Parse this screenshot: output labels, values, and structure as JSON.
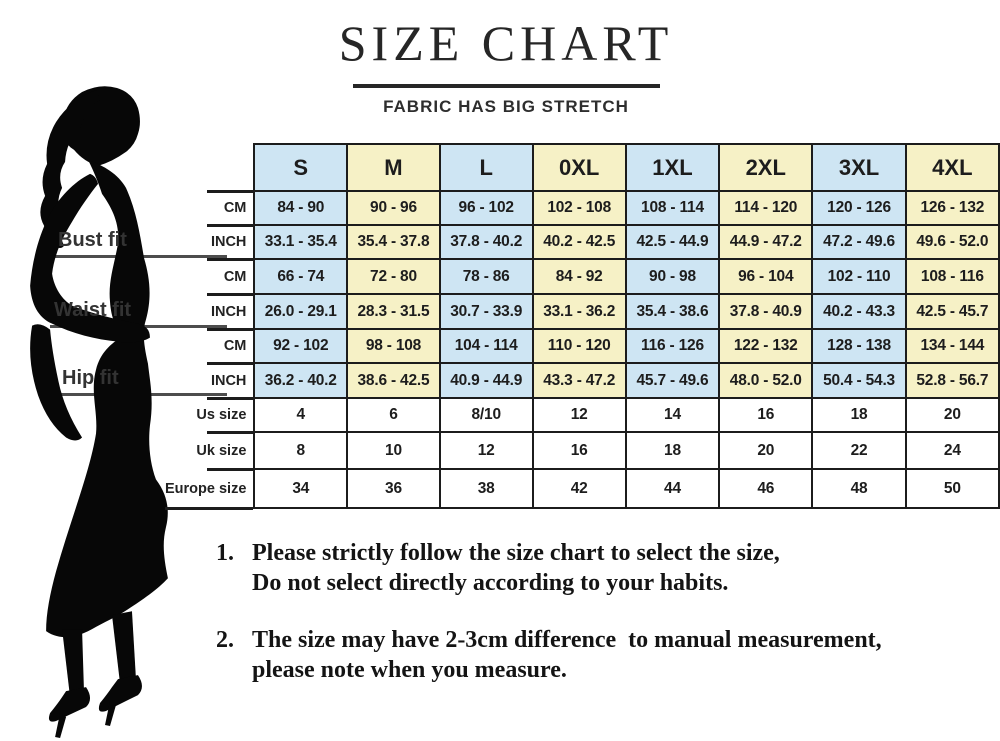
{
  "header": {
    "title": "SIZE CHART",
    "subtitle": "FABRIC HAS BIG STRETCH"
  },
  "figure": {
    "description": "black silhouette of woman in long fitted dress and high heels"
  },
  "measure_labels": [
    {
      "label": "Bust fit"
    },
    {
      "label": "Waist fit"
    },
    {
      "label": "Hip fit"
    }
  ],
  "table": {
    "sizes": [
      "S",
      "M",
      "L",
      "0XL",
      "1XL",
      "2XL",
      "3XL",
      "4XL"
    ],
    "rows": [
      {
        "label": "CM",
        "group": "bust",
        "shaded": true,
        "values": [
          "84 - 90",
          "90 - 96",
          "96 - 102",
          "102 - 108",
          "108 - 114",
          "114 - 120",
          "120 - 126",
          "126 - 132"
        ]
      },
      {
        "label": "INCH",
        "group": "bust",
        "shaded": true,
        "values": [
          "33.1 - 35.4",
          "35.4 - 37.8",
          "37.8 - 40.2",
          "40.2 - 42.5",
          "42.5 - 44.9",
          "44.9 - 47.2",
          "47.2 - 49.6",
          "49.6 - 52.0"
        ]
      },
      {
        "label": "CM",
        "group": "waist",
        "shaded": true,
        "values": [
          "66 - 74",
          "72 - 80",
          "78 - 86",
          "84 - 92",
          "90 - 98",
          "96 - 104",
          "102 - 110",
          "108 - 116"
        ]
      },
      {
        "label": "INCH",
        "group": "waist",
        "shaded": true,
        "values": [
          "26.0 - 29.1",
          "28.3 - 31.5",
          "30.7 - 33.9",
          "33.1 - 36.2",
          "35.4 - 38.6",
          "37.8 - 40.9",
          "40.2 - 43.3",
          "42.5 - 45.7"
        ]
      },
      {
        "label": "CM",
        "group": "hip",
        "shaded": true,
        "values": [
          "92 - 102",
          "98 - 108",
          "104 - 114",
          "110 - 120",
          "116 - 126",
          "122 - 132",
          "128 - 138",
          "134 - 144"
        ]
      },
      {
        "label": "INCH",
        "group": "hip",
        "shaded": true,
        "values": [
          "36.2 - 40.2",
          "38.6 - 42.5",
          "40.9 - 44.9",
          "43.3 - 47.2",
          "45.7 - 49.6",
          "48.0 - 52.0",
          "50.4 - 54.3",
          "52.8 - 56.7"
        ]
      },
      {
        "label": "Us size",
        "group": "",
        "shaded": false,
        "values": [
          "4",
          "6",
          "8/10",
          "12",
          "14",
          "16",
          "18",
          "20"
        ]
      },
      {
        "label": "Uk size",
        "group": "",
        "shaded": false,
        "values": [
          "8",
          "10",
          "12",
          "16",
          "18",
          "20",
          "22",
          "24"
        ]
      },
      {
        "label": "Europe size",
        "group": "",
        "shaded": false,
        "values": [
          "34",
          "36",
          "38",
          "42",
          "44",
          "46",
          "48",
          "50"
        ]
      }
    ]
  },
  "notes": [
    {
      "number": "1.",
      "lines": [
        "Please strictly follow the size chart to select the size,",
        "Do not select directly according to your habits."
      ]
    },
    {
      "number": "2.",
      "lines": [
        "The size may have 2-3cm difference  to manual measurement,",
        "please note when you measure."
      ]
    }
  ],
  "colors": {
    "blue": "#cee5f3",
    "yellow": "#f6f1c6",
    "border": "#1c1c1c"
  }
}
